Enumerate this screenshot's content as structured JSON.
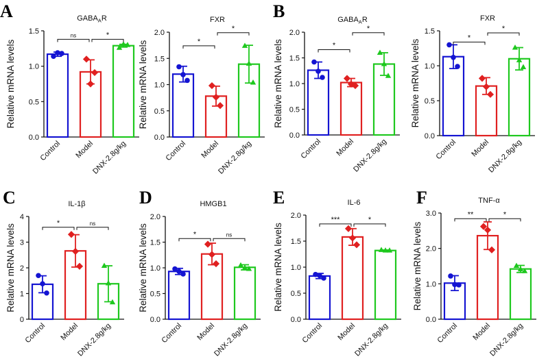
{
  "figure": {
    "description_free": true
  },
  "panel_letters": [
    {
      "id": "A",
      "text": "A"
    },
    {
      "id": "B",
      "text": "B"
    },
    {
      "id": "C",
      "text": "C"
    },
    {
      "id": "D",
      "text": "D"
    },
    {
      "id": "E",
      "text": "E"
    },
    {
      "id": "F",
      "text": "F"
    }
  ],
  "colors": {
    "Control": "#1414d2",
    "Model": "#e02020",
    "DNX-2.8g/kg": "#1ec81e",
    "axis": "#111111"
  },
  "chart_data": [
    {
      "type": "bar",
      "id": "A1",
      "title": "GABAₐR",
      "title_main": "GABA",
      "title_sub": "A",
      "title_end": "R",
      "ylabel": "Relative mRNA levels",
      "categories": [
        "Control",
        "Model",
        "DNX-2.8g/kg"
      ],
      "values": [
        1.17,
        0.92,
        1.29
      ],
      "errors": [
        0.03,
        0.17,
        0.02
      ],
      "points": [
        [
          1.14,
          1.19,
          1.18
        ],
        [
          1.1,
          0.75,
          0.91
        ],
        [
          1.26,
          1.31,
          1.3
        ]
      ],
      "ylim": [
        0,
        1.5
      ],
      "yticks": [
        {
          "v": 0,
          "label": "0.0"
        },
        {
          "v": 0.5,
          "label": "0.5"
        },
        {
          "v": 1.0,
          "label": "1.0"
        },
        {
          "v": 1.5,
          "label": "1.5"
        }
      ],
      "significance": [
        {
          "from": 0,
          "to": 1,
          "label": "ns",
          "y": 1.38
        },
        {
          "from": 1,
          "to": 2,
          "label": "*",
          "y": 1.38
        }
      ]
    },
    {
      "type": "bar",
      "id": "A2",
      "title": "FXR",
      "title_main": "FXR",
      "title_sub": "",
      "title_end": "",
      "ylabel": "Relative mRNA levels",
      "categories": [
        "Control",
        "Model",
        "DNX-2.8g/kg"
      ],
      "values": [
        1.2,
        0.78,
        1.39
      ],
      "errors": [
        0.15,
        0.19,
        0.36
      ],
      "points": [
        [
          1.34,
          1.19,
          1.08
        ],
        [
          0.98,
          0.76,
          0.6
        ],
        [
          1.74,
          1.4,
          1.04
        ]
      ],
      "ylim": [
        0,
        2.0
      ],
      "yticks": [
        {
          "v": 0,
          "label": "0.0"
        },
        {
          "v": 0.5,
          "label": "0.5"
        },
        {
          "v": 1.0,
          "label": "1.0"
        },
        {
          "v": 1.5,
          "label": "1.5"
        },
        {
          "v": 2.0,
          "label": "2.0"
        }
      ],
      "significance": [
        {
          "from": 0,
          "to": 1,
          "label": "*",
          "y": 1.74
        },
        {
          "from": 1,
          "to": 2,
          "label": "*",
          "y": 1.99
        }
      ]
    },
    {
      "type": "bar",
      "id": "B1",
      "title": "GABAₐR",
      "title_main": "GABA",
      "title_sub": "A",
      "title_end": "R",
      "ylabel": "Relative mRNA levels",
      "categories": [
        "Control",
        "Model",
        "DNX-2.8g/kg"
      ],
      "values": [
        1.26,
        1.02,
        1.38
      ],
      "errors": [
        0.16,
        0.08,
        0.22
      ],
      "points": [
        [
          1.42,
          1.24,
          1.12
        ],
        [
          1.1,
          0.99,
          0.96
        ],
        [
          1.6,
          1.38,
          1.15
        ]
      ],
      "ylim": [
        0,
        2.0
      ],
      "yticks": [
        {
          "v": 0,
          "label": "0.0"
        },
        {
          "v": 0.5,
          "label": "0.5"
        },
        {
          "v": 1.0,
          "label": "1.0"
        },
        {
          "v": 1.5,
          "label": "1.5"
        },
        {
          "v": 2.0,
          "label": "2.0"
        }
      ],
      "significance": [
        {
          "from": 0,
          "to": 1,
          "label": "*",
          "y": 1.66
        },
        {
          "from": 1,
          "to": 2,
          "label": "*",
          "y": 1.99
        }
      ]
    },
    {
      "type": "bar",
      "id": "B2",
      "title": "FXR",
      "title_main": "FXR",
      "title_sub": "",
      "title_end": "",
      "ylabel": "Relative mRNA levels",
      "categories": [
        "Control",
        "Model",
        "DNX-2.8g/kg"
      ],
      "values": [
        1.13,
        0.71,
        1.1
      ],
      "errors": [
        0.17,
        0.12,
        0.16
      ],
      "points": [
        [
          1.3,
          1.12,
          0.99
        ],
        [
          0.82,
          0.7,
          0.59
        ],
        [
          1.26,
          1.08,
          0.98
        ]
      ],
      "ylim": [
        0,
        1.5
      ],
      "yticks": [
        {
          "v": 0,
          "label": "0.0"
        },
        {
          "v": 0.5,
          "label": "0.5"
        },
        {
          "v": 1.0,
          "label": "1.0"
        },
        {
          "v": 1.5,
          "label": "1.5"
        }
      ],
      "significance": [
        {
          "from": 0,
          "to": 1,
          "label": "*",
          "y": 1.34
        },
        {
          "from": 1,
          "to": 2,
          "label": "*",
          "y": 1.47
        }
      ]
    },
    {
      "type": "bar",
      "id": "C",
      "title": "IL-1β",
      "title_main": "IL-1β",
      "title_sub": "",
      "title_end": "",
      "ylabel": "Relative mRNA levels",
      "categories": [
        "Control",
        "Model",
        "DNX-2.8g/kg"
      ],
      "values": [
        1.36,
        2.66,
        1.38
      ],
      "errors": [
        0.33,
        0.63,
        0.7
      ],
      "points": [
        [
          1.7,
          1.38,
          1.02
        ],
        [
          3.3,
          2.64,
          2.06
        ],
        [
          2.08,
          1.4,
          0.66
        ]
      ],
      "ylim": [
        0,
        4
      ],
      "yticks": [
        {
          "v": 0,
          "label": "0"
        },
        {
          "v": 1,
          "label": "1"
        },
        {
          "v": 2,
          "label": "2"
        },
        {
          "v": 3,
          "label": "3"
        },
        {
          "v": 4,
          "label": "4"
        }
      ],
      "significance": [
        {
          "from": 0,
          "to": 1,
          "label": "*",
          "y": 3.58
        },
        {
          "from": 1,
          "to": 2,
          "label": "ns",
          "y": 3.58
        }
      ]
    },
    {
      "type": "bar",
      "id": "D",
      "title": "HMGB1",
      "title_main": "HMGB1",
      "title_sub": "",
      "title_end": "",
      "ylabel": "Relative mRNA levels",
      "categories": [
        "Control",
        "Model",
        "DNX-2.8g/kg"
      ],
      "values": [
        0.93,
        1.27,
        1.01
      ],
      "errors": [
        0.06,
        0.21,
        0.05
      ],
      "points": [
        [
          0.98,
          0.93,
          0.88
        ],
        [
          1.46,
          1.26,
          1.08
        ],
        [
          1.05,
          1.0,
          0.98
        ]
      ],
      "ylim": [
        0,
        2.0
      ],
      "yticks": [
        {
          "v": 0,
          "label": "0.0"
        },
        {
          "v": 0.5,
          "label": "0.5"
        },
        {
          "v": 1.0,
          "label": "1.0"
        },
        {
          "v": 1.5,
          "label": "1.5"
        },
        {
          "v": 2.0,
          "label": "2.0"
        }
      ],
      "significance": [
        {
          "from": 0,
          "to": 1,
          "label": "*",
          "y": 1.57
        },
        {
          "from": 1,
          "to": 2,
          "label": "ns",
          "y": 1.57
        }
      ]
    },
    {
      "type": "bar",
      "id": "E",
      "title": "IL-6",
      "title_main": "IL-6",
      "title_sub": "",
      "title_end": "",
      "ylabel": "Relative mRNA levels",
      "categories": [
        "Control",
        "Model",
        "DNX-2.8g/kg"
      ],
      "values": [
        0.83,
        1.58,
        1.32
      ],
      "errors": [
        0.05,
        0.16,
        0.01
      ],
      "points": [
        [
          0.86,
          0.84,
          0.79
        ],
        [
          1.74,
          1.56,
          1.43
        ],
        [
          1.33,
          1.32,
          1.32
        ]
      ],
      "ylim": [
        0,
        2.0
      ],
      "yticks": [
        {
          "v": 0,
          "label": "0.0"
        },
        {
          "v": 0.5,
          "label": "0.5"
        },
        {
          "v": 1.0,
          "label": "1.0"
        },
        {
          "v": 1.5,
          "label": "1.5"
        },
        {
          "v": 2.0,
          "label": "2.0"
        }
      ],
      "significance": [
        {
          "from": 0,
          "to": 1,
          "label": "***",
          "y": 1.83
        },
        {
          "from": 1,
          "to": 2,
          "label": "*",
          "y": 1.83
        }
      ]
    },
    {
      "type": "bar",
      "id": "F",
      "title": "TNF-α",
      "title_main": "TNF-α",
      "title_sub": "",
      "title_end": "",
      "ylabel": "Relative mRNA levels",
      "categories": [
        "Control",
        "Model",
        "DNX-2.8g/kg"
      ],
      "values": [
        1.02,
        2.36,
        1.42
      ],
      "errors": [
        0.21,
        0.39,
        0.1
      ],
      "points": [
        [
          1.22,
          0.98,
          0.97
        ],
        [
          2.62,
          2.52,
          1.96
        ],
        [
          1.51,
          1.41,
          1.36
        ]
      ],
      "ylim": [
        0,
        3.0
      ],
      "yticks": [
        {
          "v": 0,
          "label": "0.0"
        },
        {
          "v": 1,
          "label": "1.0"
        },
        {
          "v": 2,
          "label": "2.0"
        },
        {
          "v": 3,
          "label": "3.0"
        }
      ],
      "significance": [
        {
          "from": 0,
          "to": 1,
          "label": "**",
          "y": 2.84
        },
        {
          "from": 1,
          "to": 2,
          "label": "*",
          "y": 2.84
        }
      ]
    }
  ]
}
